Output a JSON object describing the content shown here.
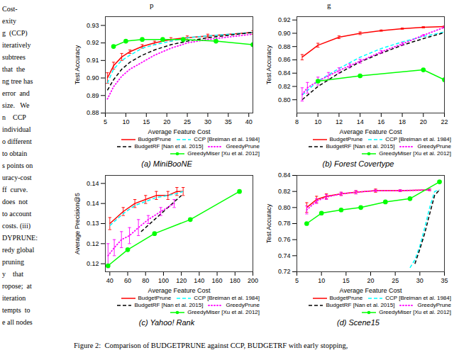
{
  "chart_data": [
    {
      "type": "line",
      "title": "(a) MiniBooNE",
      "xlabel": "Average Feature Cost",
      "ylabel": "Test Accuracy",
      "xlim": [
        5,
        41
      ],
      "ylim": [
        0.88,
        0.935
      ],
      "xticks": [
        5,
        10,
        15,
        20,
        25,
        30,
        35,
        40
      ],
      "yticks": [
        0.88,
        0.89,
        {
          "value": 0.9,
          "label": "0.90"
        },
        0.91,
        0.92,
        0.93
      ],
      "grid": false,
      "legend": "bottom",
      "series": [
        {
          "name": "BudgetPrune",
          "color": "red",
          "line_style": "solid",
          "x": [
            5.5,
            7,
            9,
            11,
            14,
            17,
            21,
            25,
            30,
            41
          ],
          "values": [
            0.9,
            0.907,
            0.912,
            0.915,
            0.918,
            0.92,
            0.922,
            0.923,
            0.924,
            0.926
          ],
          "yerr": [
            0.003,
            0.002,
            0.002,
            0.001,
            0.001,
            0.001,
            0.001,
            0.001,
            0.001,
            0.001
          ]
        },
        {
          "name": "CCP [Breiman et al. 1984]",
          "color": "cyan",
          "line_style": "dashed",
          "x": [
            5.5,
            7,
            9,
            11,
            14,
            17,
            21,
            25,
            30,
            41
          ],
          "values": [
            0.897,
            0.905,
            0.91,
            0.913,
            0.917,
            0.919,
            0.921,
            0.923,
            0.924,
            0.926
          ]
        },
        {
          "name": "BudgetRF [Nan et al. 2015]",
          "color": "black",
          "line_style": "dashed",
          "x": [
            5.5,
            7,
            9,
            11,
            14,
            17,
            21,
            25,
            30,
            41
          ],
          "values": [
            0.893,
            0.899,
            0.905,
            0.909,
            0.913,
            0.916,
            0.919,
            0.921,
            0.923,
            0.926
          ]
        },
        {
          "name": "GreedyPrune",
          "color": "magenta",
          "line_style": "dotted",
          "x": [
            5.5,
            7,
            9,
            11,
            14,
            17,
            21,
            25,
            30,
            41
          ],
          "values": [
            0.888,
            0.895,
            0.901,
            0.905,
            0.909,
            0.913,
            0.917,
            0.92,
            0.922,
            0.925
          ]
        },
        {
          "name": "GreedyMiser [Xu et al. 2012]",
          "color": "lime",
          "line_style": "solid",
          "marker": "circle",
          "x": [
            7,
            10,
            14,
            19,
            24,
            32,
            41
          ],
          "values": [
            0.918,
            0.921,
            0.922,
            0.922,
            0.922,
            0.921,
            0.919
          ]
        }
      ]
    },
    {
      "type": "line",
      "title": "(b) Forest Covertype",
      "xlabel": "Average Feature Cost",
      "ylabel": "Test Accuracy",
      "xlim": [
        8,
        22
      ],
      "ylim": [
        0.78,
        0.925
      ],
      "xticks": [
        8,
        10,
        12,
        14,
        16,
        18,
        20,
        22
      ],
      "yticks": [
        {
          "value": 0.8,
          "label": "0.80"
        },
        0.82,
        0.84,
        0.86,
        0.88,
        {
          "value": 0.9,
          "label": "0.90"
        },
        0.92
      ],
      "grid": false,
      "legend": "bottom",
      "series": [
        {
          "name": "BudgetPrune",
          "color": "red",
          "line_style": "solid",
          "x": [
            8.5,
            10,
            12,
            14,
            16,
            18,
            20,
            22
          ],
          "values": [
            0.864,
            0.882,
            0.894,
            0.9,
            0.904,
            0.907,
            0.909,
            0.91
          ],
          "yerr": [
            0.004,
            0.003,
            0.002,
            0.002,
            0.001,
            0.001,
            0.001,
            0.001
          ]
        },
        {
          "name": "CCP [Breiman et al. 1984]",
          "color": "cyan",
          "line_style": "dashed",
          "x": [
            8.5,
            10,
            12,
            14,
            16,
            18,
            20,
            22
          ],
          "values": [
            0.807,
            0.828,
            0.847,
            0.864,
            0.877,
            0.887,
            0.895,
            0.902
          ]
        },
        {
          "name": "BudgetRF [Nan et al. 2015]",
          "color": "black",
          "line_style": "dashed",
          "x": [
            8.5,
            10,
            12,
            14,
            16,
            18,
            20,
            22
          ],
          "values": [
            0.8,
            0.82,
            0.84,
            0.857,
            0.87,
            0.882,
            0.892,
            0.901
          ]
        },
        {
          "name": "GreedyPrune",
          "color": "magenta",
          "line_style": "dotted",
          "x": [
            8.5,
            9,
            10,
            11,
            12,
            13,
            14,
            16,
            18,
            20,
            22
          ],
          "values": [
            0.808,
            0.818,
            0.828,
            0.836,
            0.844,
            0.851,
            0.858,
            0.872,
            0.884,
            0.897,
            0.909
          ],
          "yerr": [
            0.01,
            0.008,
            0.006,
            0.005,
            0.004,
            0.003,
            0.003,
            0.002,
            0.002,
            0.001,
            0.001
          ]
        },
        {
          "name": "GreedyMiser [Xu et al. 2012]",
          "color": "lime",
          "line_style": "solid",
          "marker": "circle",
          "x": [
            10,
            14,
            20,
            22
          ],
          "values": [
            0.828,
            0.836,
            0.845,
            0.83
          ]
        }
      ]
    },
    {
      "type": "line",
      "title": "(c) Yahoo! Rank",
      "xlabel": "Average Feature Cost",
      "ylabel": "Average Precision@5",
      "xlim": [
        35,
        200
      ],
      "ylim": [
        0.118,
        0.142
      ],
      "xticks": [
        40,
        60,
        80,
        100,
        120,
        140,
        160,
        180,
        200
      ],
      "yticks": [
        0.12,
        {
          "value": 0.125,
          "label": "0.12"
        },
        0.13,
        {
          "value": 0.135,
          "label": "0.14"
        },
        0.14
      ],
      "grid": false,
      "legend": "bottom",
      "series": [
        {
          "name": "BudgetPrune",
          "color": "red",
          "line_style": "solid",
          "x": [
            40,
            55,
            68,
            80,
            92,
            105,
            115,
            122
          ],
          "values": [
            0.13,
            0.133,
            0.135,
            0.136,
            0.137,
            0.137,
            0.138,
            0.138
          ],
          "yerr": [
            0.0015,
            0.001,
            0.001,
            0.001,
            0.001,
            0.001,
            0.001,
            0.001
          ]
        },
        {
          "name": "CCP [Breiman et al. 1984]",
          "color": "cyan",
          "line_style": "dashed",
          "x": [
            40,
            55,
            68,
            80,
            92,
            105,
            115,
            122
          ],
          "values": [
            0.1295,
            0.1325,
            0.1345,
            0.1355,
            0.1365,
            0.137,
            0.1375,
            0.138
          ]
        },
        {
          "name": "BudgetRF [Nan et al. 2015]",
          "color": "black",
          "line_style": "dashed",
          "x": [
            75,
            90,
            105,
            120
          ],
          "values": [
            0.128,
            0.131,
            0.134,
            0.137
          ]
        },
        {
          "name": "GreedyPrune",
          "color": "magenta",
          "line_style": "dotted",
          "x": [
            38,
            45,
            53,
            62,
            72,
            83,
            97,
            112
          ],
          "values": [
            0.122,
            0.124,
            0.126,
            0.127,
            0.129,
            0.131,
            0.133,
            0.135
          ],
          "yerr": [
            0.003,
            0.002,
            0.002,
            0.002,
            0.002,
            0.001,
            0.001,
            0.001
          ]
        },
        {
          "name": "GreedyMiser [Xu et al. 2012]",
          "color": "lime",
          "line_style": "solid",
          "marker": "circle",
          "x": [
            38,
            60,
            90,
            130,
            185
          ],
          "values": [
            0.1195,
            0.1235,
            0.1275,
            0.131,
            0.138
          ]
        }
      ]
    },
    {
      "type": "line",
      "title": "(d) Scene15",
      "xlabel": "Average Feature Cost",
      "ylabel": "Test Accuracy",
      "xlim": [
        5,
        35
      ],
      "ylim": [
        0.72,
        0.84
      ],
      "xticks": [
        5,
        10,
        15,
        20,
        25,
        30,
        35
      ],
      "yticks": [
        0.72,
        0.74,
        0.76,
        0.78,
        {
          "value": 0.8,
          "label": "0.80"
        },
        0.82,
        0.84
      ],
      "grid": false,
      "legend": "bottom",
      "series": [
        {
          "name": "BudgetPrune",
          "color": "red",
          "line_style": "solid",
          "x": [
            7,
            9,
            11,
            14,
            17,
            21,
            26,
            32
          ],
          "values": [
            0.8,
            0.81,
            0.814,
            0.817,
            0.819,
            0.821,
            0.821,
            0.822
          ],
          "yerr": [
            0.006,
            0.004,
            0.003,
            0.002,
            0.002,
            0.002,
            0.001,
            0.001
          ]
        },
        {
          "name": "CCP [Breiman et al. 1984]",
          "color": "cyan",
          "line_style": "dashed",
          "x": [
            28,
            29,
            30,
            31,
            32,
            33,
            34
          ],
          "values": [
            0.725,
            0.735,
            0.752,
            0.775,
            0.8,
            0.82,
            0.822
          ]
        },
        {
          "name": "BudgetRF [Nan et al. 2015]",
          "color": "black",
          "line_style": "dashed",
          "x": [
            29,
            30,
            31,
            32,
            33,
            34
          ],
          "values": [
            0.73,
            0.748,
            0.768,
            0.792,
            0.815,
            0.822
          ]
        },
        {
          "name": "GreedyPrune",
          "color": "magenta",
          "line_style": "dotted",
          "x": [
            7,
            9,
            11,
            14,
            17,
            21,
            26,
            32
          ],
          "values": [
            0.797,
            0.808,
            0.813,
            0.817,
            0.819,
            0.821,
            0.821,
            0.822
          ],
          "yerr": [
            0.005,
            0.003,
            0.003,
            0.002,
            0.002,
            0.001,
            0.001,
            0.001
          ]
        },
        {
          "name": "GreedyMiser [Xu et al. 2012]",
          "color": "lime",
          "line_style": "solid",
          "marker": "circle",
          "x": [
            7,
            10,
            14,
            18,
            23,
            28,
            34
          ],
          "values": [
            0.78,
            0.793,
            0.797,
            0.8,
            0.807,
            0.811,
            0.832
          ]
        }
      ]
    }
  ],
  "caption": "Figure 2:  Comparison of BUDGETPRUNE against CCP, BUDGETRF with early stopping,",
  "annotations": [
    "p",
    "g"
  ],
  "side_text": [
    "Cost-",
    "exity",
    "g  (CCP)",
    "iteratively",
    "subtrees",
    "that  the",
    "ng tree has",
    "error  and",
    "size.   We",
    "n    CCP",
    "individual",
    "o different",
    "to obtain",
    "s points on",
    "uracy-cost",
    "ff  curve.",
    "does  not",
    "to account",
    "costs. (iii)",
    "DYPRUNE:",
    "redy global",
    "pruning",
    "y    that",
    "ropose;  at",
    "iteration",
    "tempts  to",
    "e all nodes"
  ]
}
